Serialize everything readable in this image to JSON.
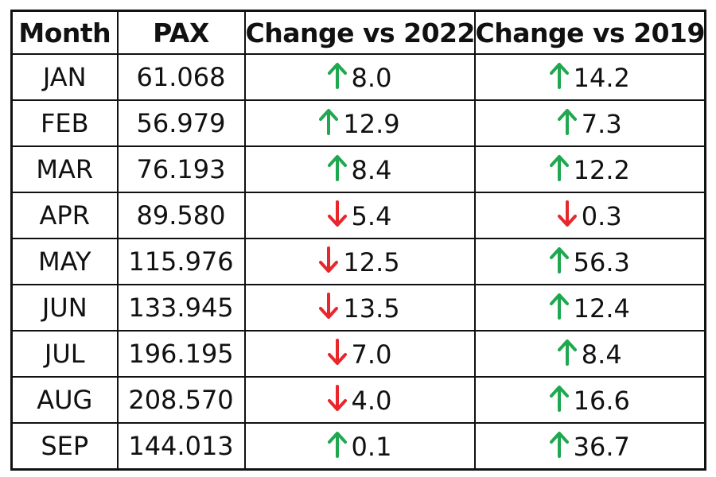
{
  "chart_data": {
    "type": "table",
    "columns": [
      "Month",
      "PAX",
      "Change vs 2022",
      "Change vs 2019"
    ],
    "rows": [
      {
        "month": "JAN",
        "pax": "61.068",
        "chg2022": {
          "dir": "up",
          "value": "8.0"
        },
        "chg2019": {
          "dir": "up",
          "value": "14.2"
        }
      },
      {
        "month": "FEB",
        "pax": "56.979",
        "chg2022": {
          "dir": "up",
          "value": "12.9"
        },
        "chg2019": {
          "dir": "up",
          "value": "7.3"
        }
      },
      {
        "month": "MAR",
        "pax": "76.193",
        "chg2022": {
          "dir": "up",
          "value": "8.4"
        },
        "chg2019": {
          "dir": "up",
          "value": "12.2"
        }
      },
      {
        "month": "APR",
        "pax": "89.580",
        "chg2022": {
          "dir": "down",
          "value": "5.4"
        },
        "chg2019": {
          "dir": "down",
          "value": "0.3"
        }
      },
      {
        "month": "MAY",
        "pax": "115.976",
        "chg2022": {
          "dir": "down",
          "value": "12.5"
        },
        "chg2019": {
          "dir": "up",
          "value": "56.3"
        }
      },
      {
        "month": "JUN",
        "pax": "133.945",
        "chg2022": {
          "dir": "down",
          "value": "13.5"
        },
        "chg2019": {
          "dir": "up",
          "value": "12.4"
        }
      },
      {
        "month": "JUL",
        "pax": "196.195",
        "chg2022": {
          "dir": "down",
          "value": "7.0"
        },
        "chg2019": {
          "dir": "up",
          "value": "8.4"
        }
      },
      {
        "month": "AUG",
        "pax": "208.570",
        "chg2022": {
          "dir": "down",
          "value": "4.0"
        },
        "chg2019": {
          "dir": "up",
          "value": "16.6"
        }
      },
      {
        "month": "SEP",
        "pax": "144.013",
        "chg2022": {
          "dir": "up",
          "value": "0.1"
        },
        "chg2019": {
          "dir": "up",
          "value": "36.7"
        }
      }
    ]
  },
  "colors": {
    "up": "#1fa84f",
    "down": "#e8262b",
    "text": "#111111",
    "border": "#111111"
  },
  "icons": {
    "up": "arrow-up-icon",
    "down": "arrow-down-icon"
  }
}
